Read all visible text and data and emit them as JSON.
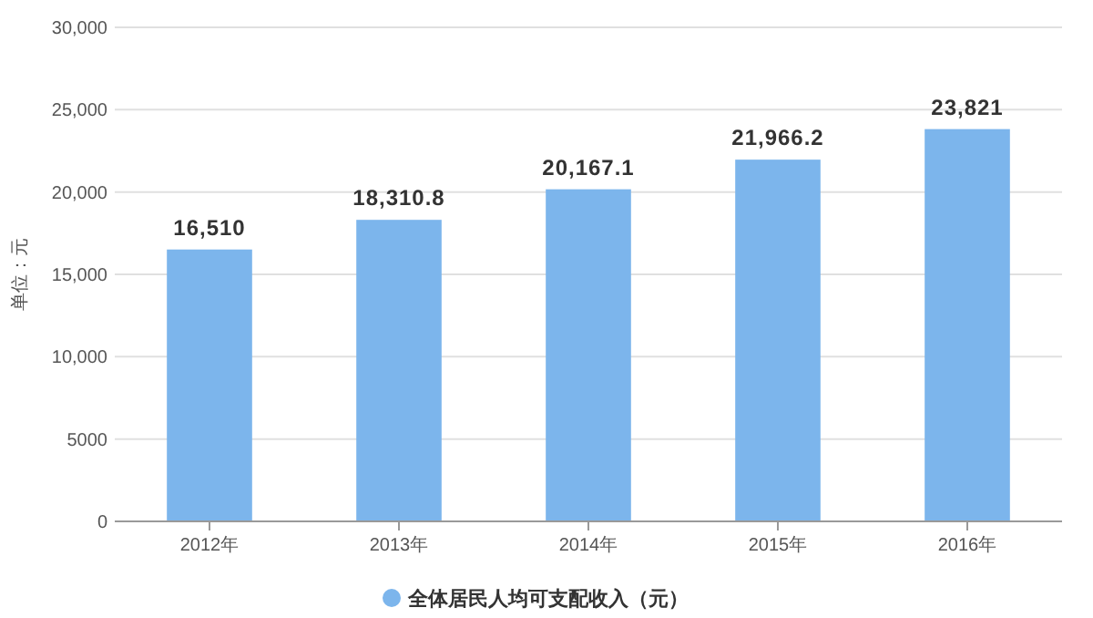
{
  "chart_data": {
    "type": "bar",
    "ylabel": "单位：元",
    "categories": [
      "2012年",
      "2013年",
      "2014年",
      "2015年",
      "2016年"
    ],
    "series": [
      {
        "name": "全体居民人均可支配收入（元）",
        "color": "#7cb5ec",
        "values": [
          16510,
          18310.8,
          20167.1,
          21966.2,
          23821
        ]
      }
    ],
    "value_labels": [
      "16,510",
      "18,310.8",
      "20,167.1",
      "21,966.2",
      "23,821"
    ],
    "ylim": [
      0,
      30000
    ],
    "yticks": [
      0,
      5000,
      {
        "value": 10000,
        "label": "10,000"
      },
      {
        "value": 15000,
        "label": "15,000"
      },
      {
        "value": 20000,
        "label": "20,000"
      },
      {
        "value": 25000,
        "label": "25,000"
      },
      {
        "value": 30000,
        "label": "30,000"
      }
    ],
    "grid": "y",
    "legend": "bottom"
  }
}
